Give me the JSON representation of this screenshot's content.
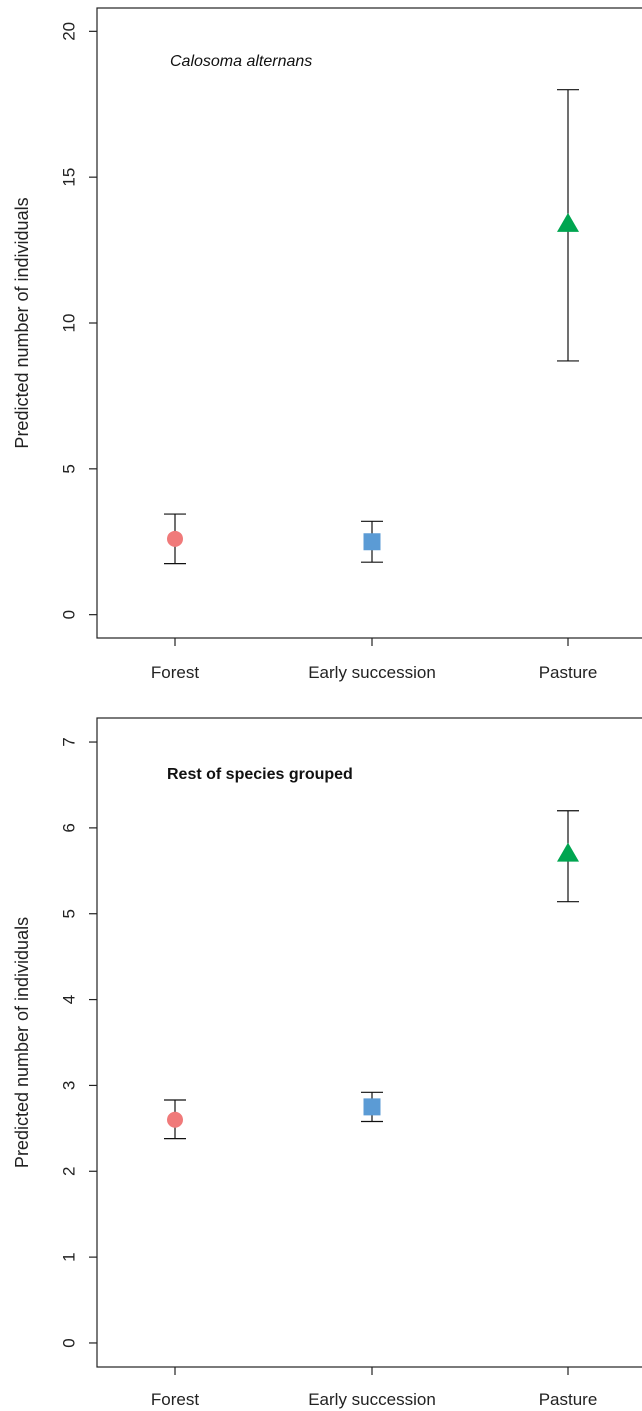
{
  "chart_data": [
    {
      "type": "scatter",
      "title": "Calosoma alternans",
      "title_style": "italic",
      "xlabel": "",
      "ylabel": "Predicted number of individuals",
      "categories": [
        "Forest",
        "Early succession",
        "Pasture"
      ],
      "ylim": [
        -0.8,
        20.8
      ],
      "yticks": [
        0,
        5,
        10,
        15,
        20
      ],
      "grid": false,
      "points": [
        {
          "category": "Forest",
          "value": 2.6,
          "lower": 1.75,
          "upper": 3.45,
          "marker": "circle",
          "color": "#f07a7a"
        },
        {
          "category": "Early succession",
          "value": 2.5,
          "lower": 1.8,
          "upper": 3.2,
          "marker": "square",
          "color": "#5b9bd5"
        },
        {
          "category": "Pasture",
          "value": 13.4,
          "lower": 8.7,
          "upper": 18.0,
          "marker": "triangle",
          "color": "#00a550"
        }
      ]
    },
    {
      "type": "scatter",
      "title": "Rest of species grouped",
      "title_style": "bold",
      "xlabel": "",
      "ylabel": "Predicted number of individuals",
      "categories": [
        "Forest",
        "Early succession",
        "Pasture"
      ],
      "ylim": [
        -0.28,
        7.28
      ],
      "yticks": [
        0,
        1,
        2,
        3,
        4,
        5,
        6,
        7
      ],
      "grid": false,
      "points": [
        {
          "category": "Forest",
          "value": 2.6,
          "lower": 2.38,
          "upper": 2.83,
          "marker": "circle",
          "color": "#f07a7a"
        },
        {
          "category": "Early succession",
          "value": 2.75,
          "lower": 2.58,
          "upper": 2.92,
          "marker": "square",
          "color": "#5b9bd5"
        },
        {
          "category": "Pasture",
          "value": 5.7,
          "lower": 5.14,
          "upper": 6.2,
          "marker": "triangle",
          "color": "#00a550"
        }
      ]
    }
  ]
}
